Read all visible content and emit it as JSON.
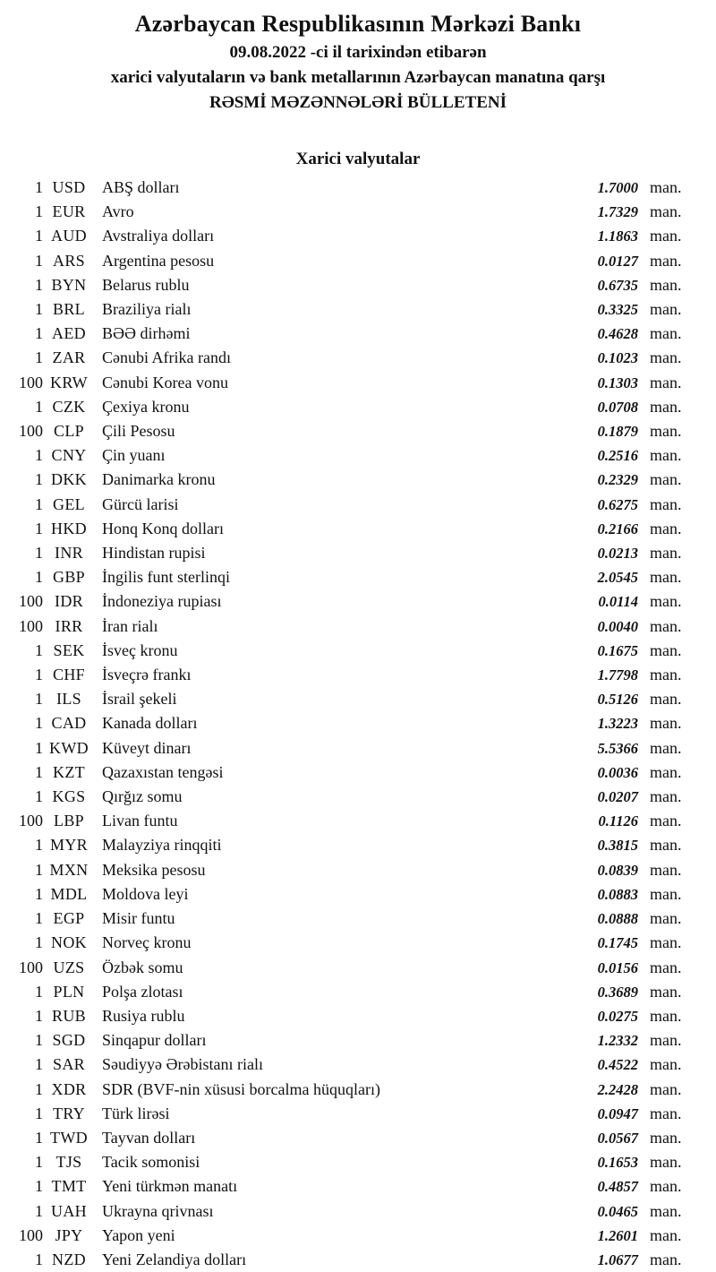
{
  "header": {
    "title": "Azərbaycan Respublikasının Mərkəzi Bankı",
    "date_line": "09.08.2022 -ci il tarixindən etibarən",
    "subject_line": "xarici valyutaların və bank metallarının Azərbaycan manatına qarşı",
    "bulletin_line": "RƏSMİ MƏZƏNNƏLƏRİ BÜLLETENİ"
  },
  "section": {
    "title": "Xarici valyutalar"
  },
  "rates": [
    {
      "qty": "1",
      "code": "USD",
      "name": "ABŞ dolları",
      "rate": "1.7000",
      "unit": "man."
    },
    {
      "qty": "1",
      "code": "EUR",
      "name": "Avro",
      "rate": "1.7329",
      "unit": "man."
    },
    {
      "qty": "1",
      "code": "AUD",
      "name": "Avstraliya dolları",
      "rate": "1.1863",
      "unit": "man."
    },
    {
      "qty": "1",
      "code": "ARS",
      "name": "Argentina pesosu",
      "rate": "0.0127",
      "unit": "man."
    },
    {
      "qty": "1",
      "code": "BYN",
      "name": "Belarus rublu",
      "rate": "0.6735",
      "unit": "man."
    },
    {
      "qty": "1",
      "code": "BRL",
      "name": "Braziliya rialı",
      "rate": "0.3325",
      "unit": "man."
    },
    {
      "qty": "1",
      "code": "AED",
      "name": "BƏƏ dirhəmi",
      "rate": "0.4628",
      "unit": "man."
    },
    {
      "qty": "1",
      "code": "ZAR",
      "name": "Cənubi Afrika randı",
      "rate": "0.1023",
      "unit": "man."
    },
    {
      "qty": "100",
      "code": "KRW",
      "name": "Cənubi Korea vonu",
      "rate": "0.1303",
      "unit": "man."
    },
    {
      "qty": "1",
      "code": "CZK",
      "name": "Çexiya kronu",
      "rate": "0.0708",
      "unit": "man."
    },
    {
      "qty": "100",
      "code": "CLP",
      "name": "Çili Pesosu",
      "rate": "0.1879",
      "unit": "man."
    },
    {
      "qty": "1",
      "code": "CNY",
      "name": "Çin yuanı",
      "rate": "0.2516",
      "unit": "man."
    },
    {
      "qty": "1",
      "code": "DKK",
      "name": "Danimarka kronu",
      "rate": "0.2329",
      "unit": "man."
    },
    {
      "qty": "1",
      "code": "GEL",
      "name": "Gürcü larisi",
      "rate": "0.6275",
      "unit": "man."
    },
    {
      "qty": "1",
      "code": "HKD",
      "name": "Honq Konq dolları",
      "rate": "0.2166",
      "unit": "man."
    },
    {
      "qty": "1",
      "code": "INR",
      "name": "Hindistan rupisi",
      "rate": "0.0213",
      "unit": "man."
    },
    {
      "qty": "1",
      "code": "GBP",
      "name": "İngilis funt sterlinqi",
      "rate": "2.0545",
      "unit": "man."
    },
    {
      "qty": "100",
      "code": "IDR",
      "name": "İndoneziya rupiası",
      "rate": "0.0114",
      "unit": "man."
    },
    {
      "qty": "100",
      "code": "IRR",
      "name": "İran rialı",
      "rate": "0.0040",
      "unit": "man."
    },
    {
      "qty": "1",
      "code": "SEK",
      "name": "İsveç kronu",
      "rate": "0.1675",
      "unit": "man."
    },
    {
      "qty": "1",
      "code": "CHF",
      "name": "İsveçrə frankı",
      "rate": "1.7798",
      "unit": "man."
    },
    {
      "qty": "1",
      "code": "ILS",
      "name": "İsrail şekeli",
      "rate": "0.5126",
      "unit": "man."
    },
    {
      "qty": "1",
      "code": "CAD",
      "name": "Kanada dolları",
      "rate": "1.3223",
      "unit": "man."
    },
    {
      "qty": "1",
      "code": "KWD",
      "name": "Küveyt dinarı",
      "rate": "5.5366",
      "unit": "man."
    },
    {
      "qty": "1",
      "code": "KZT",
      "name": "Qazaxıstan tengəsi",
      "rate": "0.0036",
      "unit": "man."
    },
    {
      "qty": "1",
      "code": "KGS",
      "name": "Qırğız somu",
      "rate": "0.0207",
      "unit": "man."
    },
    {
      "qty": "100",
      "code": "LBP",
      "name": "Livan funtu",
      "rate": "0.1126",
      "unit": "man."
    },
    {
      "qty": "1",
      "code": "MYR",
      "name": "Malayziya rinqqiti",
      "rate": "0.3815",
      "unit": "man."
    },
    {
      "qty": "1",
      "code": "MXN",
      "name": "Meksika pesosu",
      "rate": "0.0839",
      "unit": "man."
    },
    {
      "qty": "1",
      "code": "MDL",
      "name": "Moldova leyi",
      "rate": "0.0883",
      "unit": "man."
    },
    {
      "qty": "1",
      "code": "EGP",
      "name": "Misir funtu",
      "rate": "0.0888",
      "unit": "man."
    },
    {
      "qty": "1",
      "code": "NOK",
      "name": "Norveç kronu",
      "rate": "0.1745",
      "unit": "man."
    },
    {
      "qty": "100",
      "code": "UZS",
      "name": "Özbək somu",
      "rate": "0.0156",
      "unit": "man."
    },
    {
      "qty": "1",
      "code": "PLN",
      "name": "Polşa zlotası",
      "rate": "0.3689",
      "unit": "man."
    },
    {
      "qty": "1",
      "code": "RUB",
      "name": "Rusiya rublu",
      "rate": "0.0275",
      "unit": "man."
    },
    {
      "qty": "1",
      "code": "SGD",
      "name": "Sinqapur dolları",
      "rate": "1.2332",
      "unit": "man."
    },
    {
      "qty": "1",
      "code": "SAR",
      "name": "Səudiyyə Ərəbistanı rialı",
      "rate": "0.4522",
      "unit": "man."
    },
    {
      "qty": "1",
      "code": "XDR",
      "name": "SDR (BVF-nin xüsusi borcalma hüquqları)",
      "rate": "2.2428",
      "unit": "man."
    },
    {
      "qty": "1",
      "code": "TRY",
      "name": "Türk lirəsi",
      "rate": "0.0947",
      "unit": "man."
    },
    {
      "qty": "1",
      "code": "TWD",
      "name": "Tayvan dolları",
      "rate": "0.0567",
      "unit": "man."
    },
    {
      "qty": "1",
      "code": "TJS",
      "name": "Tacik somonisi",
      "rate": "0.1653",
      "unit": "man."
    },
    {
      "qty": "1",
      "code": "TMT",
      "name": "Yeni türkmən manatı",
      "rate": "0.4857",
      "unit": "man."
    },
    {
      "qty": "1",
      "code": "UAH",
      "name": "Ukrayna qrivnası",
      "rate": "0.0465",
      "unit": "man."
    },
    {
      "qty": "100",
      "code": "JPY",
      "name": "Yapon yeni",
      "rate": "1.2601",
      "unit": "man."
    },
    {
      "qty": "1",
      "code": "NZD",
      "name": "Yeni Zelandiya dolları",
      "rate": "1.0677",
      "unit": "man."
    }
  ]
}
